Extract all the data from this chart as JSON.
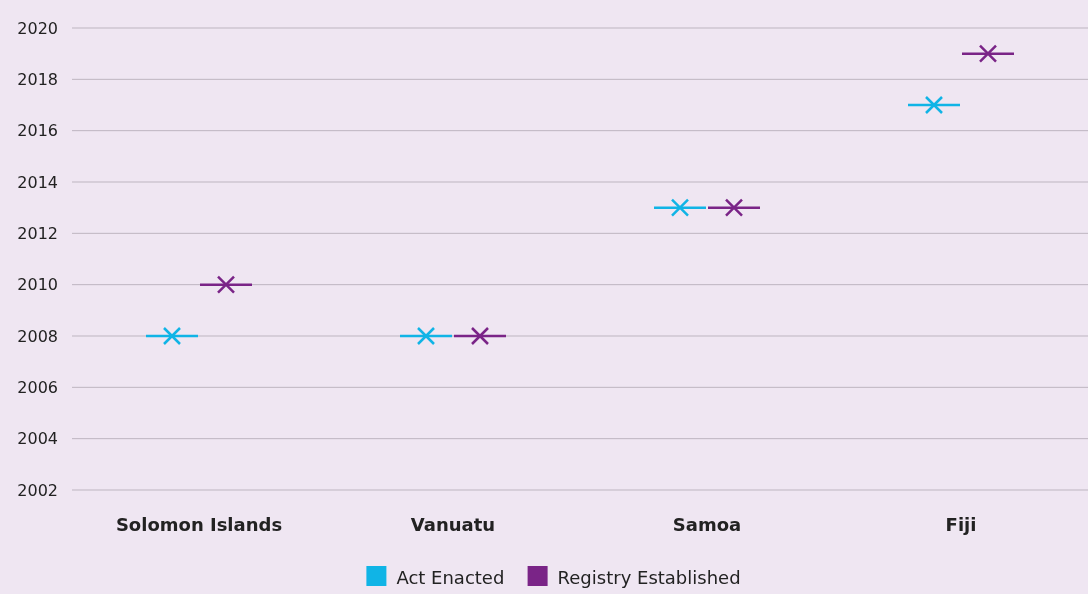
{
  "chart_data": {
    "type": "scatter",
    "categories": [
      "Solomon Islands",
      "Vanuatu",
      "Samoa",
      "Fiji"
    ],
    "series": [
      {
        "name": "Act Enacted",
        "color": "#10b4e6",
        "values": [
          2008,
          2008,
          2013,
          2017
        ]
      },
      {
        "name": "Registry Established",
        "color": "#7a2487",
        "values": [
          2010,
          2008,
          2013,
          2019
        ]
      }
    ],
    "ylim": [
      2002,
      2020
    ],
    "yticks": [
      2002,
      2004,
      2006,
      2008,
      2010,
      2012,
      2014,
      2016,
      2018,
      2020
    ],
    "grid": "y",
    "legend": "bottom",
    "marker": "cross"
  }
}
